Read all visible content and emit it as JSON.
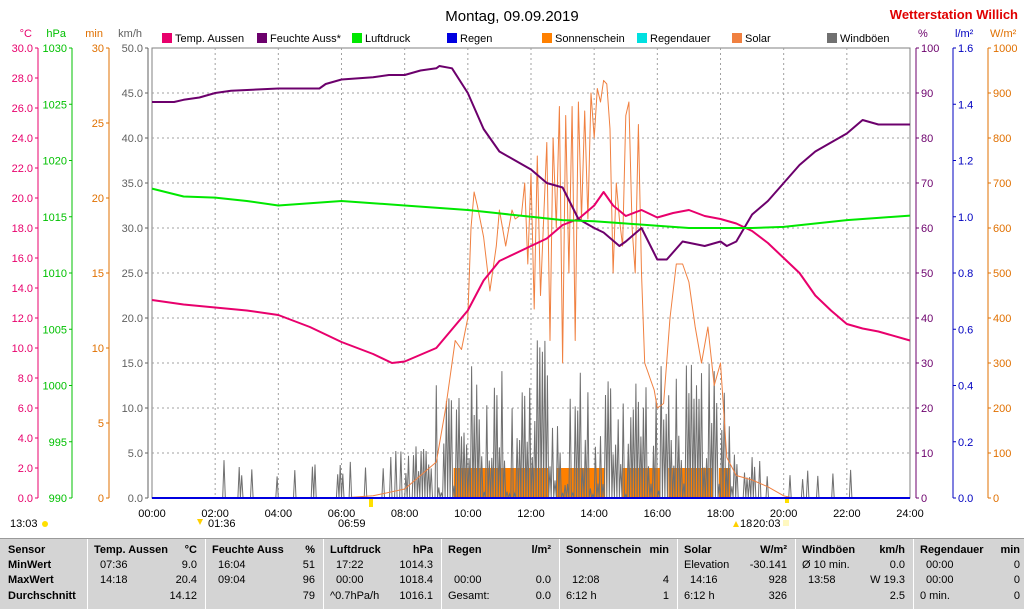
{
  "header": {
    "title": "Montag, 09.09.2019",
    "station": "Wetterstation Willich"
  },
  "colors": {
    "temp": "#e8006c",
    "humidity": "#6c006c",
    "pressure": "#00e800",
    "rain": "#0000e0",
    "sunshine": "#ff8000",
    "rain_duration": "#00e0e0",
    "solar": "#f08040",
    "gusts": "#707070",
    "station": "#e00000"
  },
  "chart_data": {
    "type": "line",
    "x_range_hours": [
      0,
      24
    ],
    "x_ticks": [
      "00:00",
      "02:00",
      "04:00",
      "06:00",
      "08:00",
      "10:00",
      "12:00",
      "14:00",
      "16:00",
      "18:00",
      "20:00",
      "22:00",
      "24:00"
    ],
    "grid": true,
    "legend": [
      {
        "name": "Temp. Aussen",
        "color": "#e8006c"
      },
      {
        "name": "Feuchte Auss*",
        "color": "#6c006c"
      },
      {
        "name": "Luftdruck",
        "color": "#00e800"
      },
      {
        "name": "Regen",
        "color": "#0000e0"
      },
      {
        "name": "Sonnenschein",
        "color": "#ff8000"
      },
      {
        "name": "Regendauer",
        "color": "#00e0e0"
      },
      {
        "name": "Solar",
        "color": "#f08040"
      },
      {
        "name": "Windböen",
        "color": "#707070"
      }
    ],
    "axes_left": [
      {
        "unit": "°C",
        "color": "#e8006c",
        "min": 0,
        "max": 30,
        "ticks": [
          "0.0",
          "2.0",
          "4.0",
          "6.0",
          "8.0",
          "10.0",
          "12.0",
          "14.0",
          "16.0",
          "18.0",
          "20.0",
          "22.0",
          "24.0",
          "26.0",
          "28.0",
          "30.0"
        ]
      },
      {
        "unit": "hPa",
        "color": "#00c000",
        "min": 990,
        "max": 1030,
        "ticks": [
          "990",
          "995",
          "1000",
          "1005",
          "1010",
          "1015",
          "1020",
          "1025",
          "1030"
        ]
      },
      {
        "unit": "min",
        "color": "#e07000",
        "min": 0,
        "max": 30,
        "ticks": [
          "0",
          "5",
          "10",
          "15",
          "20",
          "25",
          "30"
        ]
      },
      {
        "unit": "km/h",
        "color": "#606060",
        "min": 0,
        "max": 50,
        "ticks": [
          "0.0",
          "5.0",
          "10.0",
          "15.0",
          "20.0",
          "25.0",
          "30.0",
          "35.0",
          "40.0",
          "45.0",
          "50.0"
        ]
      }
    ],
    "axes_right": [
      {
        "unit": "%",
        "color": "#6c006c",
        "min": 0,
        "max": 100,
        "ticks": [
          "0",
          "10",
          "20",
          "30",
          "40",
          "50",
          "60",
          "70",
          "80",
          "90",
          "100"
        ]
      },
      {
        "unit": "l/m²",
        "color": "#0000c0",
        "min": 0,
        "max": 1.6,
        "ticks": [
          "0.0",
          "0.2",
          "0.4",
          "0.6",
          "0.8",
          "1.0",
          "1.2",
          "1.4",
          "1.6"
        ]
      },
      {
        "unit": "W/m²",
        "color": "#e07000",
        "min": 0,
        "max": 1000,
        "ticks": [
          "0",
          "100",
          "200",
          "300",
          "400",
          "500",
          "600",
          "700",
          "800",
          "900",
          "1000"
        ]
      }
    ],
    "series": {
      "temp": {
        "name": "Temp. Aussen",
        "axis": "°C",
        "points": [
          [
            0,
            13.2
          ],
          [
            1,
            12.9
          ],
          [
            2,
            12.7
          ],
          [
            3,
            12.5
          ],
          [
            4,
            12.2
          ],
          [
            5,
            11.4
          ],
          [
            6,
            10.4
          ],
          [
            7,
            9.6
          ],
          [
            7.6,
            9.0
          ],
          [
            8,
            9.1
          ],
          [
            9,
            10.0
          ],
          [
            10,
            12.5
          ],
          [
            10.5,
            14.5
          ],
          [
            11,
            15.8
          ],
          [
            12,
            16.8
          ],
          [
            12.5,
            17.3
          ],
          [
            13,
            18.2
          ],
          [
            13.5,
            18.6
          ],
          [
            14,
            19.5
          ],
          [
            14.3,
            20.4
          ],
          [
            14.6,
            19.5
          ],
          [
            15,
            18.8
          ],
          [
            15.5,
            19.2
          ],
          [
            16,
            18.7
          ],
          [
            16.5,
            19.0
          ],
          [
            17,
            19.2
          ],
          [
            17.5,
            18.8
          ],
          [
            18,
            18.6
          ],
          [
            18.5,
            18.3
          ],
          [
            19,
            17.8
          ],
          [
            19.5,
            17.0
          ],
          [
            20,
            16.0
          ],
          [
            20.5,
            15.0
          ],
          [
            21,
            13.5
          ],
          [
            21.5,
            12.5
          ],
          [
            22,
            11.6
          ],
          [
            22.5,
            11.3
          ],
          [
            23,
            11.1
          ],
          [
            24,
            10.5
          ]
        ]
      },
      "humidity": {
        "name": "Feuchte Auss*",
        "axis": "%",
        "points": [
          [
            0,
            88
          ],
          [
            0.7,
            88
          ],
          [
            1,
            88.5
          ],
          [
            1.5,
            89
          ],
          [
            2,
            90
          ],
          [
            2.5,
            90.5
          ],
          [
            4,
            91
          ],
          [
            5.3,
            91
          ],
          [
            5.5,
            92
          ],
          [
            6,
            93
          ],
          [
            7,
            93.5
          ],
          [
            7.5,
            94
          ],
          [
            8,
            94
          ],
          [
            8.5,
            95
          ],
          [
            9,
            95.5
          ],
          [
            9.1,
            96
          ],
          [
            9.5,
            95.5
          ],
          [
            10,
            90
          ],
          [
            10.5,
            82
          ],
          [
            11,
            77
          ],
          [
            11.5,
            75
          ],
          [
            12,
            73
          ],
          [
            12.5,
            70
          ],
          [
            13,
            69
          ],
          [
            13.5,
            62
          ],
          [
            14,
            60
          ],
          [
            14.3,
            59
          ],
          [
            14.8,
            56
          ],
          [
            15,
            57
          ],
          [
            15.5,
            60
          ],
          [
            16,
            53
          ],
          [
            16.3,
            53
          ],
          [
            16.8,
            57
          ],
          [
            17.5,
            56
          ],
          [
            18,
            57
          ],
          [
            18.2,
            56
          ],
          [
            18.5,
            57
          ],
          [
            19,
            63
          ],
          [
            19.5,
            66
          ],
          [
            20,
            70
          ],
          [
            20.5,
            74
          ],
          [
            21,
            77
          ],
          [
            21.5,
            79
          ],
          [
            22,
            81
          ],
          [
            22.5,
            84
          ],
          [
            23,
            83
          ],
          [
            23.5,
            83
          ],
          [
            24,
            83
          ]
        ]
      },
      "pressure": {
        "name": "Luftdruck",
        "axis": "hPa",
        "points": [
          [
            0,
            1017.5
          ],
          [
            1,
            1016.8
          ],
          [
            2,
            1016.7
          ],
          [
            3,
            1016.4
          ],
          [
            4,
            1016.0
          ],
          [
            5,
            1016.2
          ],
          [
            6,
            1016.4
          ],
          [
            7,
            1016.2
          ],
          [
            8,
            1016.0
          ],
          [
            9,
            1015.8
          ],
          [
            10,
            1015.6
          ],
          [
            11,
            1015.3
          ],
          [
            12,
            1015.0
          ],
          [
            13,
            1014.7
          ],
          [
            14,
            1014.6
          ],
          [
            15,
            1014.4
          ],
          [
            16,
            1014.2
          ],
          [
            17,
            1014.0
          ],
          [
            18,
            1014.0
          ],
          [
            19,
            1014.0
          ],
          [
            20,
            1014.1
          ],
          [
            21,
            1014.4
          ],
          [
            22,
            1014.7
          ],
          [
            23,
            1014.9
          ],
          [
            24,
            1015.1
          ]
        ]
      },
      "rain": {
        "name": "Regen",
        "axis": "l/m²",
        "points": [
          [
            0,
            0
          ],
          [
            24,
            0
          ]
        ]
      },
      "solar": {
        "name": "Solar",
        "axis": "W/m²",
        "points": [
          [
            6.0,
            0
          ],
          [
            7,
            5
          ],
          [
            8,
            20
          ],
          [
            9,
            80
          ],
          [
            9.3,
            200
          ],
          [
            9.6,
            350
          ],
          [
            9.8,
            330
          ],
          [
            10,
            400
          ],
          [
            10.1,
            600
          ],
          [
            10.2,
            680
          ],
          [
            10.3,
            650
          ],
          [
            10.5,
            580
          ],
          [
            10.7,
            460
          ],
          [
            10.9,
            560
          ],
          [
            11,
            640
          ],
          [
            11.2,
            560
          ],
          [
            11.4,
            640
          ],
          [
            11.5,
            620
          ],
          [
            11.7,
            630
          ],
          [
            11.8,
            700
          ],
          [
            11.9,
            520
          ],
          [
            12,
            720
          ],
          [
            12.1,
            420
          ],
          [
            12.2,
            760
          ],
          [
            12.3,
            450
          ],
          [
            12.5,
            790
          ],
          [
            12.6,
            350
          ],
          [
            12.7,
            800
          ],
          [
            12.8,
            600
          ],
          [
            12.9,
            870
          ],
          [
            13,
            300
          ],
          [
            13.1,
            850
          ],
          [
            13.2,
            500
          ],
          [
            13.3,
            870
          ],
          [
            13.4,
            350
          ],
          [
            13.5,
            880
          ],
          [
            13.6,
            620
          ],
          [
            13.7,
            860
          ],
          [
            13.8,
            620
          ],
          [
            13.9,
            900
          ],
          [
            14,
            800
          ],
          [
            14.1,
            910
          ],
          [
            14.2,
            880
          ],
          [
            14.3,
            928
          ],
          [
            14.4,
            920
          ],
          [
            14.5,
            820
          ],
          [
            14.6,
            500
          ],
          [
            14.7,
            700
          ],
          [
            14.8,
            620
          ],
          [
            14.9,
            560
          ],
          [
            15,
            850
          ],
          [
            15.1,
            880
          ],
          [
            15.2,
            600
          ],
          [
            15.3,
            500
          ],
          [
            15.4,
            830
          ],
          [
            15.5,
            500
          ],
          [
            15.6,
            300
          ],
          [
            15.7,
            280
          ],
          [
            15.8,
            260
          ],
          [
            15.9,
            240
          ],
          [
            16,
            200
          ],
          [
            16.2,
            210
          ],
          [
            16.4,
            400
          ],
          [
            16.6,
            520
          ],
          [
            16.8,
            520
          ],
          [
            17,
            480
          ],
          [
            17.2,
            380
          ],
          [
            17.4,
            300
          ],
          [
            17.6,
            380
          ],
          [
            17.8,
            250
          ],
          [
            18,
            300
          ],
          [
            18.2,
            90
          ],
          [
            18.5,
            50
          ],
          [
            19,
            40
          ],
          [
            19.5,
            25
          ],
          [
            20,
            5
          ],
          [
            20.3,
            0
          ]
        ]
      },
      "sunshine": {
        "name": "Sonnenschein",
        "axis": "min",
        "blocks": [
          [
            9.55,
            12.55
          ],
          [
            12.8,
            14.35
          ],
          [
            14.9,
            16.1
          ],
          [
            16.35,
            17.75
          ],
          [
            17.95,
            18.3
          ]
        ],
        "height_min": 2
      }
    },
    "gusts_range_hours": [
      1.8,
      22.5
    ],
    "markers": {
      "sunrise": "06:59",
      "sunset": "20:03",
      "moonrise": "13:03",
      "moonset": "01:36",
      "extra": "18"
    }
  },
  "stats": {
    "row_labels": [
      "Sensor",
      "MinWert",
      "MaxWert",
      "Durchschnitt"
    ],
    "temp": {
      "title": "Temp. Aussen",
      "unit": "°C",
      "min_time": "07:36",
      "min": "9.0",
      "max_time": "14:18",
      "max": "20.4",
      "avg": "14.12"
    },
    "humidity": {
      "title": "Feuchte Auss",
      "unit": "%",
      "min_time": "16:04",
      "min": "51",
      "max_time": "09:04",
      "max": "96",
      "avg": "79"
    },
    "pressure": {
      "title": "Luftdruck",
      "unit": "hPa",
      "min_time": "17:22",
      "min": "1014.3",
      "max_time": "00:00",
      "max": "1018.4",
      "avg_label": "^0.7hPa/h",
      "avg": "1016.1"
    },
    "rain": {
      "title": "Regen",
      "unit": "l/m²",
      "max_time": "00:00",
      "max": "0.0",
      "total_label": "Gesamt:",
      "total": "0.0"
    },
    "sunshine": {
      "title": "Sonnenschein",
      "unit": "min",
      "max_time": "12:08",
      "max": "4",
      "total_label": "6:12 h",
      "total": "1"
    },
    "solar": {
      "title": "Solar",
      "unit": "W/m²",
      "elev_label": "Elevation",
      "elev": "-30.141",
      "max_time": "14:16",
      "max": "928",
      "total_label": "6:12 h",
      "avg": "326"
    },
    "gusts": {
      "title": "Windböen",
      "unit": "km/h",
      "r1_label": "Ø 10 min.",
      "r1": "0.0",
      "max_time": "13:58",
      "max": "W 19.3",
      "avg": "2.5"
    },
    "rain_duration": {
      "title": "Regendauer",
      "unit": "min",
      "r1_time": "00:00",
      "r1": "0",
      "r2_time": "00:00",
      "r2": "0",
      "r3_label": "0 min.",
      "r3": "0"
    }
  }
}
